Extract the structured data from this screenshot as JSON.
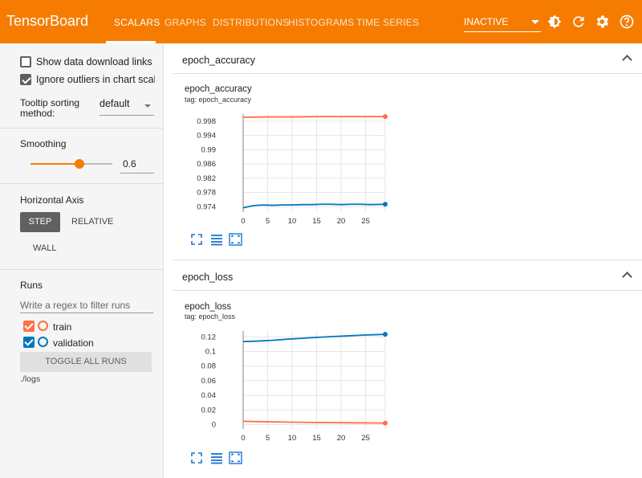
{
  "header": {
    "brand": "TensorBoard",
    "tabs": [
      {
        "label": "SCALARS",
        "active": true
      },
      {
        "label": "GRAPHS",
        "active": false
      },
      {
        "label": "DISTRIBUTIONS",
        "active": false
      },
      {
        "label": "HISTOGRAMS",
        "active": false
      },
      {
        "label": "TIME SERIES",
        "active": false
      }
    ],
    "run_selector": "INACTIVE",
    "icons": [
      "theme-toggle-icon",
      "refresh-icon",
      "settings-gear-icon",
      "help-icon"
    ],
    "accent_color": "#f57c00"
  },
  "sidebar": {
    "show_download_links": "Show data download links",
    "ignore_outliers": "Ignore outliers in chart scaling",
    "tooltip_sorting_label_1": "Tooltip sorting",
    "tooltip_sorting_label_2": "method:",
    "tooltip_sorting_value": "default",
    "smoothing_label": "Smoothing",
    "smoothing_value": "0.6",
    "smoothing_level": 0.6,
    "horizontal_axis_label": "Horizontal Axis",
    "axis_step": "STEP",
    "axis_relative": "RELATIVE",
    "axis_wall": "WALL",
    "runs_label": "Runs",
    "runs_filter_placeholder": "Write a regex to filter runs",
    "runs": [
      {
        "name": "train",
        "color": "#ff7043"
      },
      {
        "name": "validation",
        "color": "#0277bd"
      }
    ],
    "toggle_all": "TOGGLE ALL RUNS",
    "logdir": "./logs"
  },
  "cards": [
    {
      "header": "epoch_accuracy",
      "title": "epoch_accuracy",
      "tag": "tag: epoch_accuracy"
    },
    {
      "header": "epoch_loss",
      "title": "epoch_loss",
      "tag": "tag: epoch_loss"
    }
  ],
  "chart_data": [
    {
      "type": "line",
      "title": "epoch_accuracy",
      "x_ticks": [
        "0",
        "5",
        "10",
        "15",
        "20",
        "25"
      ],
      "y_ticks": [
        "0.974",
        "0.978",
        "0.982",
        "0.986",
        "0.99",
        "0.994",
        "0.998"
      ],
      "xlim": [
        0,
        29
      ],
      "ylim": [
        0.9725,
        1.0
      ],
      "series": [
        {
          "color": "#ff7043",
          "x": [
            0,
            5,
            10,
            15,
            20,
            25,
            29
          ],
          "y": [
            0.9991,
            0.9992,
            0.9992,
            0.9993,
            0.9993,
            0.9993,
            0.9993
          ]
        },
        {
          "color": "#0277bd",
          "x": [
            0,
            2,
            4,
            6,
            8,
            10,
            12,
            14,
            16,
            18,
            20,
            22,
            24,
            26,
            29
          ],
          "y": [
            0.9737,
            0.9743,
            0.9745,
            0.9744,
            0.9745,
            0.9745,
            0.9746,
            0.9746,
            0.9747,
            0.9747,
            0.9746,
            0.9747,
            0.9747,
            0.9746,
            0.9747
          ]
        }
      ]
    },
    {
      "type": "line",
      "title": "epoch_loss",
      "x_ticks": [
        "0",
        "5",
        "10",
        "15",
        "20",
        "25"
      ],
      "y_ticks": [
        "0",
        "0.02",
        "0.04",
        "0.06",
        "0.08",
        "0.1",
        "0.12"
      ],
      "xlim": [
        0,
        29
      ],
      "ylim": [
        -0.006,
        0.128
      ],
      "series": [
        {
          "color": "#0277bd",
          "x": [
            0,
            3,
            6,
            9,
            12,
            15,
            18,
            21,
            24,
            27,
            29
          ],
          "y": [
            0.1135,
            0.1142,
            0.1152,
            0.1168,
            0.118,
            0.1192,
            0.1203,
            0.1212,
            0.1222,
            0.123,
            0.1235
          ]
        },
        {
          "color": "#ff7043",
          "x": [
            0,
            5,
            10,
            15,
            20,
            25,
            29
          ],
          "y": [
            0.0045,
            0.0038,
            0.0033,
            0.0029,
            0.0026,
            0.0023,
            0.0021
          ]
        }
      ]
    }
  ]
}
